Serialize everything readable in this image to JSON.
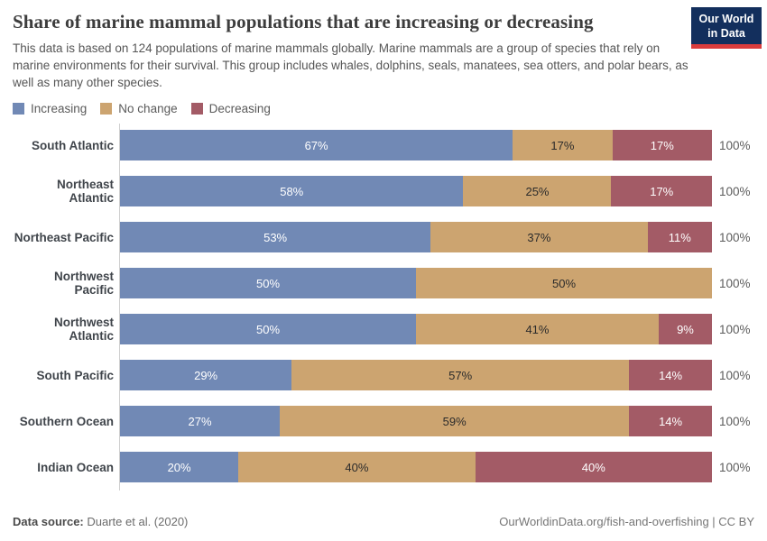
{
  "header": {
    "title": "Share of marine mammal populations that are increasing or decreasing",
    "subtitle": "This data is based on 124 populations of marine mammals globally. Marine mammals are a group of species that rely on marine environments for their survival. This group includes whales, dolphins, seals, manatees, sea otters, and polar bears, as well as many other species.",
    "logo": {
      "line1": "Our World",
      "line2": "in Data",
      "bg_color": "#132f5d",
      "accent_color": "#da3c3c"
    }
  },
  "chart_data": {
    "type": "bar",
    "orientation": "horizontal",
    "stacked": true,
    "unit": "%",
    "categories": [
      "South Atlantic",
      "Northeast Atlantic",
      "Northeast Pacific",
      "Northwest Pacific",
      "Northwest Atlantic",
      "South Pacific",
      "Southern Ocean",
      "Indian Ocean"
    ],
    "series": [
      {
        "name": "Increasing",
        "color": "#7189B5",
        "label_color": "#FFFFFF",
        "values": [
          67,
          58,
          53,
          50,
          50,
          29,
          27,
          20
        ]
      },
      {
        "name": "No change",
        "color": "#CCA470",
        "label_color": "#2B2B2B",
        "values": [
          17,
          25,
          37,
          50,
          41,
          57,
          59,
          40
        ]
      },
      {
        "name": "Decreasing",
        "color": "#A35B66",
        "label_color": "#FFFFFF",
        "values": [
          17,
          17,
          11,
          0,
          9,
          14,
          14,
          40
        ]
      }
    ],
    "row_total_label": "100%",
    "xlim": [
      0,
      100
    ],
    "grid": false,
    "legend_position": "top",
    "axis_line_color": "#CFCFCF"
  },
  "footer": {
    "source_label": "Data source:",
    "source_value": "Duarte et al. (2020)",
    "link": "OurWorldinData.org/fish-and-overfishing | CC BY"
  }
}
